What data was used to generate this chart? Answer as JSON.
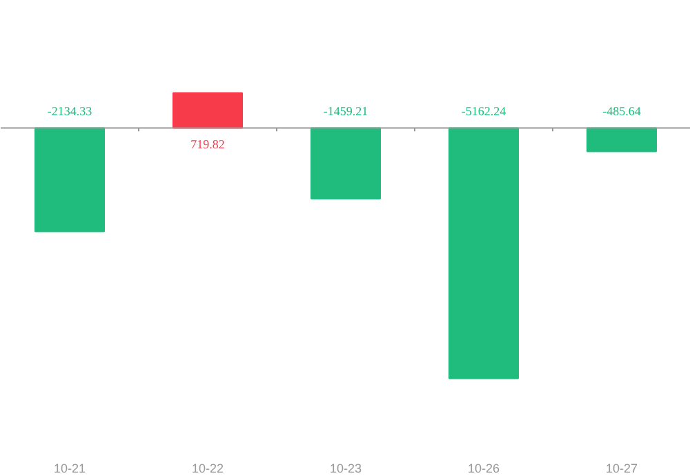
{
  "chart_data": {
    "type": "bar",
    "categories": [
      "10-21",
      "10-22",
      "10-23",
      "10-26",
      "10-27"
    ],
    "values": [
      -2134.33,
      719.82,
      -1459.21,
      -5162.24,
      -485.64
    ],
    "colors": [
      "#1fbc7d",
      "#f83b4b",
      "#1fbc7d",
      "#1fbc7d",
      "#1fbc7d"
    ],
    "data_labels": true
  }
}
